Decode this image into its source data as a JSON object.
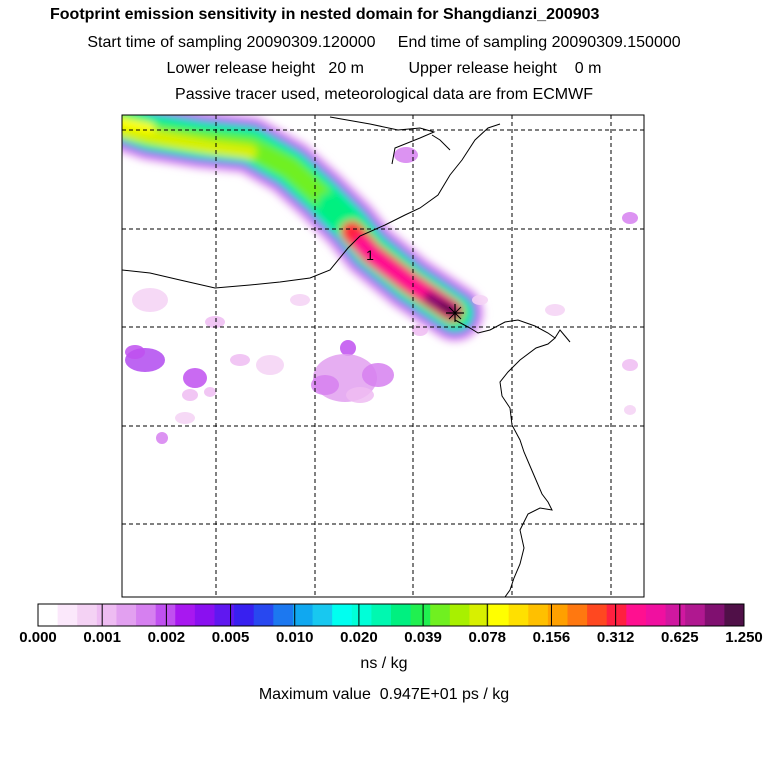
{
  "header": {
    "title": "Footprint emission sensitivity in nested domain for Shangdianzi_200903",
    "line2": "Start time of sampling 20090309.120000     End time of sampling 20090309.150000",
    "line3": "Lower release height   20 m          Upper release height    0 m",
    "line4": "Passive tracer used, meteorological data are from ECMWF"
  },
  "colors": {
    "palette": [
      "#ffffff",
      "#fbe8fb",
      "#f4d2f4",
      "#eebcf2",
      "#e2a0f0",
      "#d680f0",
      "#c050f0",
      "#a818f0",
      "#8a10f0",
      "#6018f0",
      "#3820f0",
      "#2848f0",
      "#1c78f0",
      "#10a8f0",
      "#18c8f0",
      "#00fff0",
      "#00ffd8",
      "#00f8b0",
      "#00f080",
      "#20f050",
      "#70f020",
      "#a8f000",
      "#d8f000",
      "#ffff00",
      "#ffe000",
      "#ffc000",
      "#ffa000",
      "#ff7810",
      "#ff4820",
      "#ff2040",
      "#ff1090",
      "#f010a0",
      "#d018a0",
      "#b01890",
      "#801070",
      "#501048"
    ],
    "map_lines": "#000000"
  },
  "chart_data": {
    "type": "heatmap",
    "title": "Footprint emission sensitivity in nested domain for Shangdianzi_200903",
    "colorbar": {
      "tick_labels": [
        "0.000",
        "0.001",
        "0.002",
        "0.005",
        "0.010",
        "0.020",
        "0.039",
        "0.078",
        "0.156",
        "0.312",
        "0.625",
        "1.250"
      ],
      "unit": "ns / kg"
    },
    "maximum_value_text": "Maximum value  0.947E+01 ps / kg",
    "release_site_label": "1",
    "grid": true
  }
}
